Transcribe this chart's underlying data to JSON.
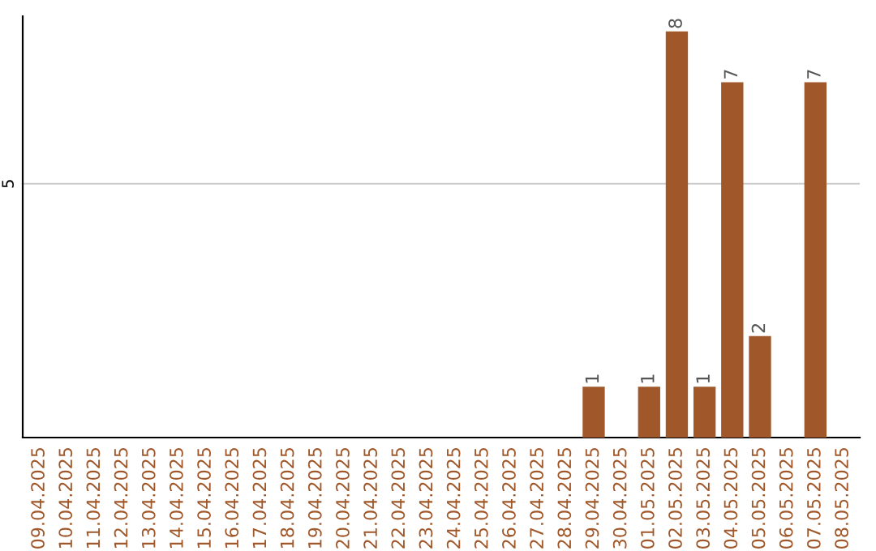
{
  "chart_data": {
    "type": "bar",
    "categories": [
      "09.04.2025",
      "10.04.2025",
      "11.04.2025",
      "12.04.2025",
      "13.04.2025",
      "14.04.2025",
      "15.04.2025",
      "16.04.2025",
      "17.04.2025",
      "18.04.2025",
      "19.04.2025",
      "20.04.2025",
      "21.04.2025",
      "22.04.2025",
      "23.04.2025",
      "24.04.2025",
      "25.04.2025",
      "26.04.2025",
      "27.04.2025",
      "28.04.2025",
      "29.04.2025",
      "30.04.2025",
      "01.05.2025",
      "02.05.2025",
      "03.05.2025",
      "04.05.2025",
      "05.05.2025",
      "06.05.2025",
      "07.05.2025",
      "08.05.2025"
    ],
    "values": [
      null,
      null,
      null,
      null,
      null,
      null,
      null,
      null,
      null,
      null,
      null,
      null,
      null,
      null,
      null,
      null,
      null,
      null,
      null,
      null,
      1,
      null,
      1,
      8,
      1,
      7,
      2,
      null,
      7,
      null
    ],
    "data_labels": true,
    "color": "#a0582a",
    "ylim": [
      0,
      8.3
    ],
    "yticks": [
      5
    ],
    "grid": "y"
  }
}
